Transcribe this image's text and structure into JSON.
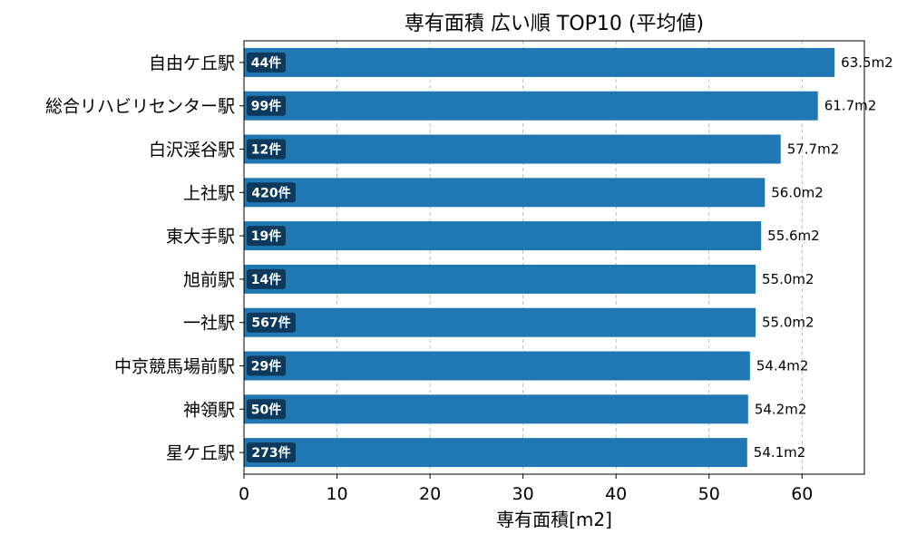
{
  "chart_data": {
    "type": "bar",
    "orientation": "horizontal",
    "title": "専有面積 広い順 TOP10 (平均値)",
    "xlabel": "専有面積[m2]",
    "ylabel": "",
    "xlim": [
      0,
      66.7
    ],
    "xticks": [
      0,
      10,
      20,
      30,
      40,
      50,
      60
    ],
    "grid": "x-dashed",
    "bar_color": "#1f77b4",
    "badge_color": "#0d3a5c",
    "categories": [
      "自由ケ丘駅",
      "総合リハビリセンター駅",
      "白沢渓谷駅",
      "上社駅",
      "東大手駅",
      "旭前駅",
      "一社駅",
      "中京競馬場前駅",
      "神領駅",
      "星ケ丘駅"
    ],
    "values": [
      63.5,
      61.7,
      57.7,
      56.0,
      55.6,
      55.0,
      55.0,
      54.4,
      54.2,
      54.1
    ],
    "value_labels": [
      "63.5m2",
      "61.7m2",
      "57.7m2",
      "56.0m2",
      "55.6m2",
      "55.0m2",
      "55.0m2",
      "54.4m2",
      "54.2m2",
      "54.1m2"
    ],
    "count_labels": [
      "44件",
      "99件",
      "12件",
      "420件",
      "19件",
      "14件",
      "567件",
      "29件",
      "50件",
      "273件"
    ]
  }
}
